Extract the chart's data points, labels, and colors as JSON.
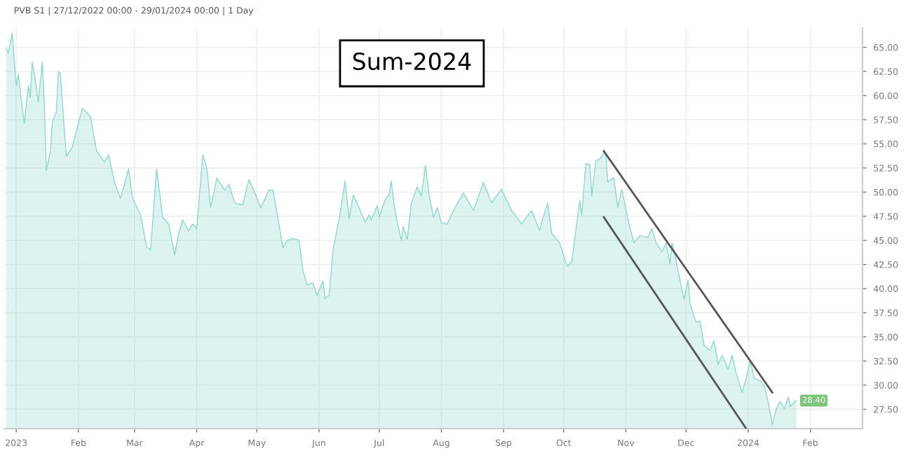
{
  "chart_data": {
    "type": "area",
    "title": "PVB S1 | 27/12/2022 00:00 - 29/01/2024 00:00 | 1 Day",
    "annotations": [
      "Sum-2024",
      {
        "text": "28.40",
        "x": "2024-01-25",
        "y": 28.4
      }
    ],
    "series": [
      {
        "color": "#8fd8cd",
        "x": [
          "2022-12-27",
          "2022-12-28",
          "2022-12-30",
          "2023-01-01",
          "2023-01-02",
          "2023-01-05",
          "2023-01-07",
          "2023-01-08",
          "2023-01-09",
          "2023-01-11",
          "2023-01-12",
          "2023-01-14",
          "2023-01-15",
          "2023-01-16",
          "2023-01-18",
          "2023-01-19",
          "2023-01-21",
          "2023-01-22",
          "2023-01-23",
          "2023-01-25",
          "2023-01-26",
          "2023-01-29",
          "2023-02-03",
          "2023-02-07",
          "2023-02-10",
          "2023-02-14",
          "2023-02-16",
          "2023-02-19",
          "2023-02-22",
          "2023-02-24",
          "2023-02-26",
          "2023-02-28",
          "2023-03-04",
          "2023-03-07",
          "2023-03-09",
          "2023-03-12",
          "2023-03-15",
          "2023-03-18",
          "2023-03-21",
          "2023-03-23",
          "2023-03-25",
          "2023-03-28",
          "2023-03-30",
          "2023-04-01",
          "2023-04-04",
          "2023-04-06",
          "2023-04-08",
          "2023-04-11",
          "2023-04-15",
          "2023-04-17",
          "2023-04-20",
          "2023-04-24",
          "2023-04-27",
          "2023-04-29",
          "2023-05-03",
          "2023-05-07",
          "2023-05-09",
          "2023-05-12",
          "2023-05-14",
          "2023-05-16",
          "2023-05-19",
          "2023-05-22",
          "2023-05-24",
          "2023-05-26",
          "2023-05-29",
          "2023-05-31",
          "2023-06-03",
          "2023-06-04",
          "2023-06-06",
          "2023-06-08",
          "2023-06-11",
          "2023-06-14",
          "2023-06-16",
          "2023-06-18",
          "2023-06-20",
          "2023-06-24",
          "2023-06-26",
          "2023-06-27",
          "2023-06-30",
          "2023-07-01",
          "2023-07-04",
          "2023-07-06",
          "2023-07-07",
          "2023-07-09",
          "2023-07-12",
          "2023-07-13",
          "2023-07-15",
          "2023-07-17",
          "2023-07-20",
          "2023-07-22",
          "2023-07-24",
          "2023-07-26",
          "2023-07-28",
          "2023-07-30",
          "2023-08-01",
          "2023-08-04",
          "2023-08-07",
          "2023-08-12",
          "2023-08-17",
          "2023-08-22",
          "2023-08-26",
          "2023-08-31",
          "2023-09-05",
          "2023-09-10",
          "2023-09-15",
          "2023-09-19",
          "2023-09-20",
          "2023-09-23",
          "2023-09-25",
          "2023-09-29",
          "2023-10-02",
          "2023-10-03",
          "2023-10-05",
          "2023-10-09",
          "2023-10-10",
          "2023-10-12",
          "2023-10-14",
          "2023-10-15",
          "2023-10-17",
          "2023-10-19",
          "2023-10-21",
          "2023-10-22",
          "2023-10-23",
          "2023-10-26",
          "2023-10-28",
          "2023-10-30",
          "2023-11-02",
          "2023-11-05",
          "2023-11-08",
          "2023-11-12",
          "2023-11-14",
          "2023-11-16",
          "2023-11-19",
          "2023-11-21",
          "2023-11-23",
          "2023-11-24",
          "2023-11-25",
          "2023-11-27",
          "2023-11-30",
          "2023-12-02",
          "2023-12-03",
          "2023-12-06",
          "2023-12-08",
          "2023-12-10",
          "2023-12-13",
          "2023-12-15",
          "2023-12-17",
          "2023-12-19",
          "2023-12-22",
          "2023-12-24",
          "2023-12-26",
          "2023-12-29",
          "2023-12-31",
          "2024-01-02",
          "2024-01-04",
          "2024-01-07",
          "2024-01-09",
          "2024-01-11",
          "2024-01-13",
          "2024-01-15",
          "2024-01-17",
          "2024-01-19",
          "2024-01-21",
          "2024-01-22",
          "2024-01-25"
        ],
        "values": [
          64.85,
          64.4,
          66.45,
          61.0,
          62.2,
          57.1,
          61.0,
          59.8,
          63.5,
          61.0,
          59.3,
          63.5,
          59.3,
          52.25,
          54.2,
          57.3,
          58.3,
          62.5,
          62.3,
          56.4,
          53.7,
          54.7,
          58.7,
          57.8,
          54.3,
          53.1,
          53.85,
          51.05,
          49.35,
          50.8,
          52.4,
          49.35,
          47.65,
          44.35,
          44.0,
          52.4,
          47.4,
          46.7,
          43.5,
          45.7,
          47.1,
          46.0,
          46.7,
          46.2,
          53.85,
          52.5,
          48.4,
          51.45,
          50.2,
          50.8,
          48.85,
          48.7,
          51.3,
          50.4,
          48.4,
          50.2,
          50.2,
          46.7,
          44.25,
          45.0,
          45.2,
          45.0,
          41.85,
          40.4,
          40.6,
          39.3,
          40.8,
          39.0,
          39.3,
          44.05,
          47.2,
          51.15,
          47.2,
          49.7,
          48.85,
          46.9,
          47.65,
          47.1,
          48.6,
          47.4,
          49.2,
          49.8,
          51.15,
          47.9,
          45.0,
          46.45,
          45.1,
          48.85,
          50.55,
          49.6,
          52.75,
          49.6,
          47.4,
          48.4,
          46.8,
          46.7,
          48.1,
          49.9,
          48.1,
          51.0,
          48.9,
          50.3,
          48.1,
          46.7,
          48.1,
          46.0,
          46.9,
          48.85,
          45.7,
          44.75,
          42.8,
          42.3,
          42.8,
          49.1,
          47.65,
          52.95,
          52.85,
          49.6,
          53.2,
          53.4,
          54.05,
          54.0,
          51.05,
          51.5,
          48.4,
          50.3,
          47.2,
          44.75,
          45.5,
          45.3,
          46.2,
          44.75,
          43.8,
          44.75,
          42.55,
          44.75,
          44.0,
          41.85,
          38.9,
          40.9,
          38.45,
          36.5,
          36.65,
          34.1,
          33.6,
          34.6,
          32.15,
          33.1,
          31.65,
          33.1,
          31.2,
          29.25,
          30.7,
          32.6,
          30.7,
          30.45,
          29.95,
          28.25,
          25.85,
          27.55,
          28.3,
          27.55,
          28.75,
          27.8,
          28.4
        ]
      },
      {
        "type": "line",
        "color": "#555555",
        "x": [
          "2023-10-21",
          "2024-01-13"
        ],
        "values": [
          54.25,
          29.25
        ]
      },
      {
        "type": "line",
        "color": "#555555",
        "x": [
          "2023-10-21",
          "2023-12-31"
        ],
        "values": [
          47.4,
          25.5
        ]
      }
    ],
    "xlim": [
      "2022-12-26",
      "2024-02-27"
    ],
    "xticks": [
      {
        "value": "2023-01-01",
        "label": "2023"
      },
      {
        "value": "2023-02-01",
        "label": "Feb"
      },
      {
        "value": "2023-03-01",
        "label": "Mar"
      },
      {
        "value": "2023-04-01",
        "label": "Apr"
      },
      {
        "value": "2023-05-01",
        "label": "May"
      },
      {
        "value": "2023-06-01",
        "label": "Jun"
      },
      {
        "value": "2023-07-01",
        "label": "Jul"
      },
      {
        "value": "2023-08-01",
        "label": "Aug"
      },
      {
        "value": "2023-09-01",
        "label": "Sep"
      },
      {
        "value": "2023-10-01",
        "label": "Oct"
      },
      {
        "value": "2023-11-01",
        "label": "Nov"
      },
      {
        "value": "2023-12-01",
        "label": "Dec"
      },
      {
        "value": "2024-01-01",
        "label": "2024"
      },
      {
        "value": "2024-02-01",
        "label": "Feb"
      }
    ],
    "ylim": [
      25.5,
      67
    ],
    "yticks": [
      {
        "value": 27.5,
        "label": "27.50"
      },
      {
        "value": 30,
        "label": "30.00"
      },
      {
        "value": 32.5,
        "label": "32.50"
      },
      {
        "value": 35,
        "label": "35.00"
      },
      {
        "value": 37.5,
        "label": "37.50"
      },
      {
        "value": 40,
        "label": "40.00"
      },
      {
        "value": 42.5,
        "label": "42.50"
      },
      {
        "value": 45,
        "label": "45.00"
      },
      {
        "value": 47.5,
        "label": "47.50"
      },
      {
        "value": 50,
        "label": "50.00"
      },
      {
        "value": 52.5,
        "label": "52.50"
      },
      {
        "value": 55,
        "label": "55.00"
      },
      {
        "value": 57.5,
        "label": "57.50"
      },
      {
        "value": 60,
        "label": "60.00"
      },
      {
        "value": 62.5,
        "label": "62.50"
      },
      {
        "value": 65,
        "label": "65.00"
      }
    ],
    "grid": true
  }
}
